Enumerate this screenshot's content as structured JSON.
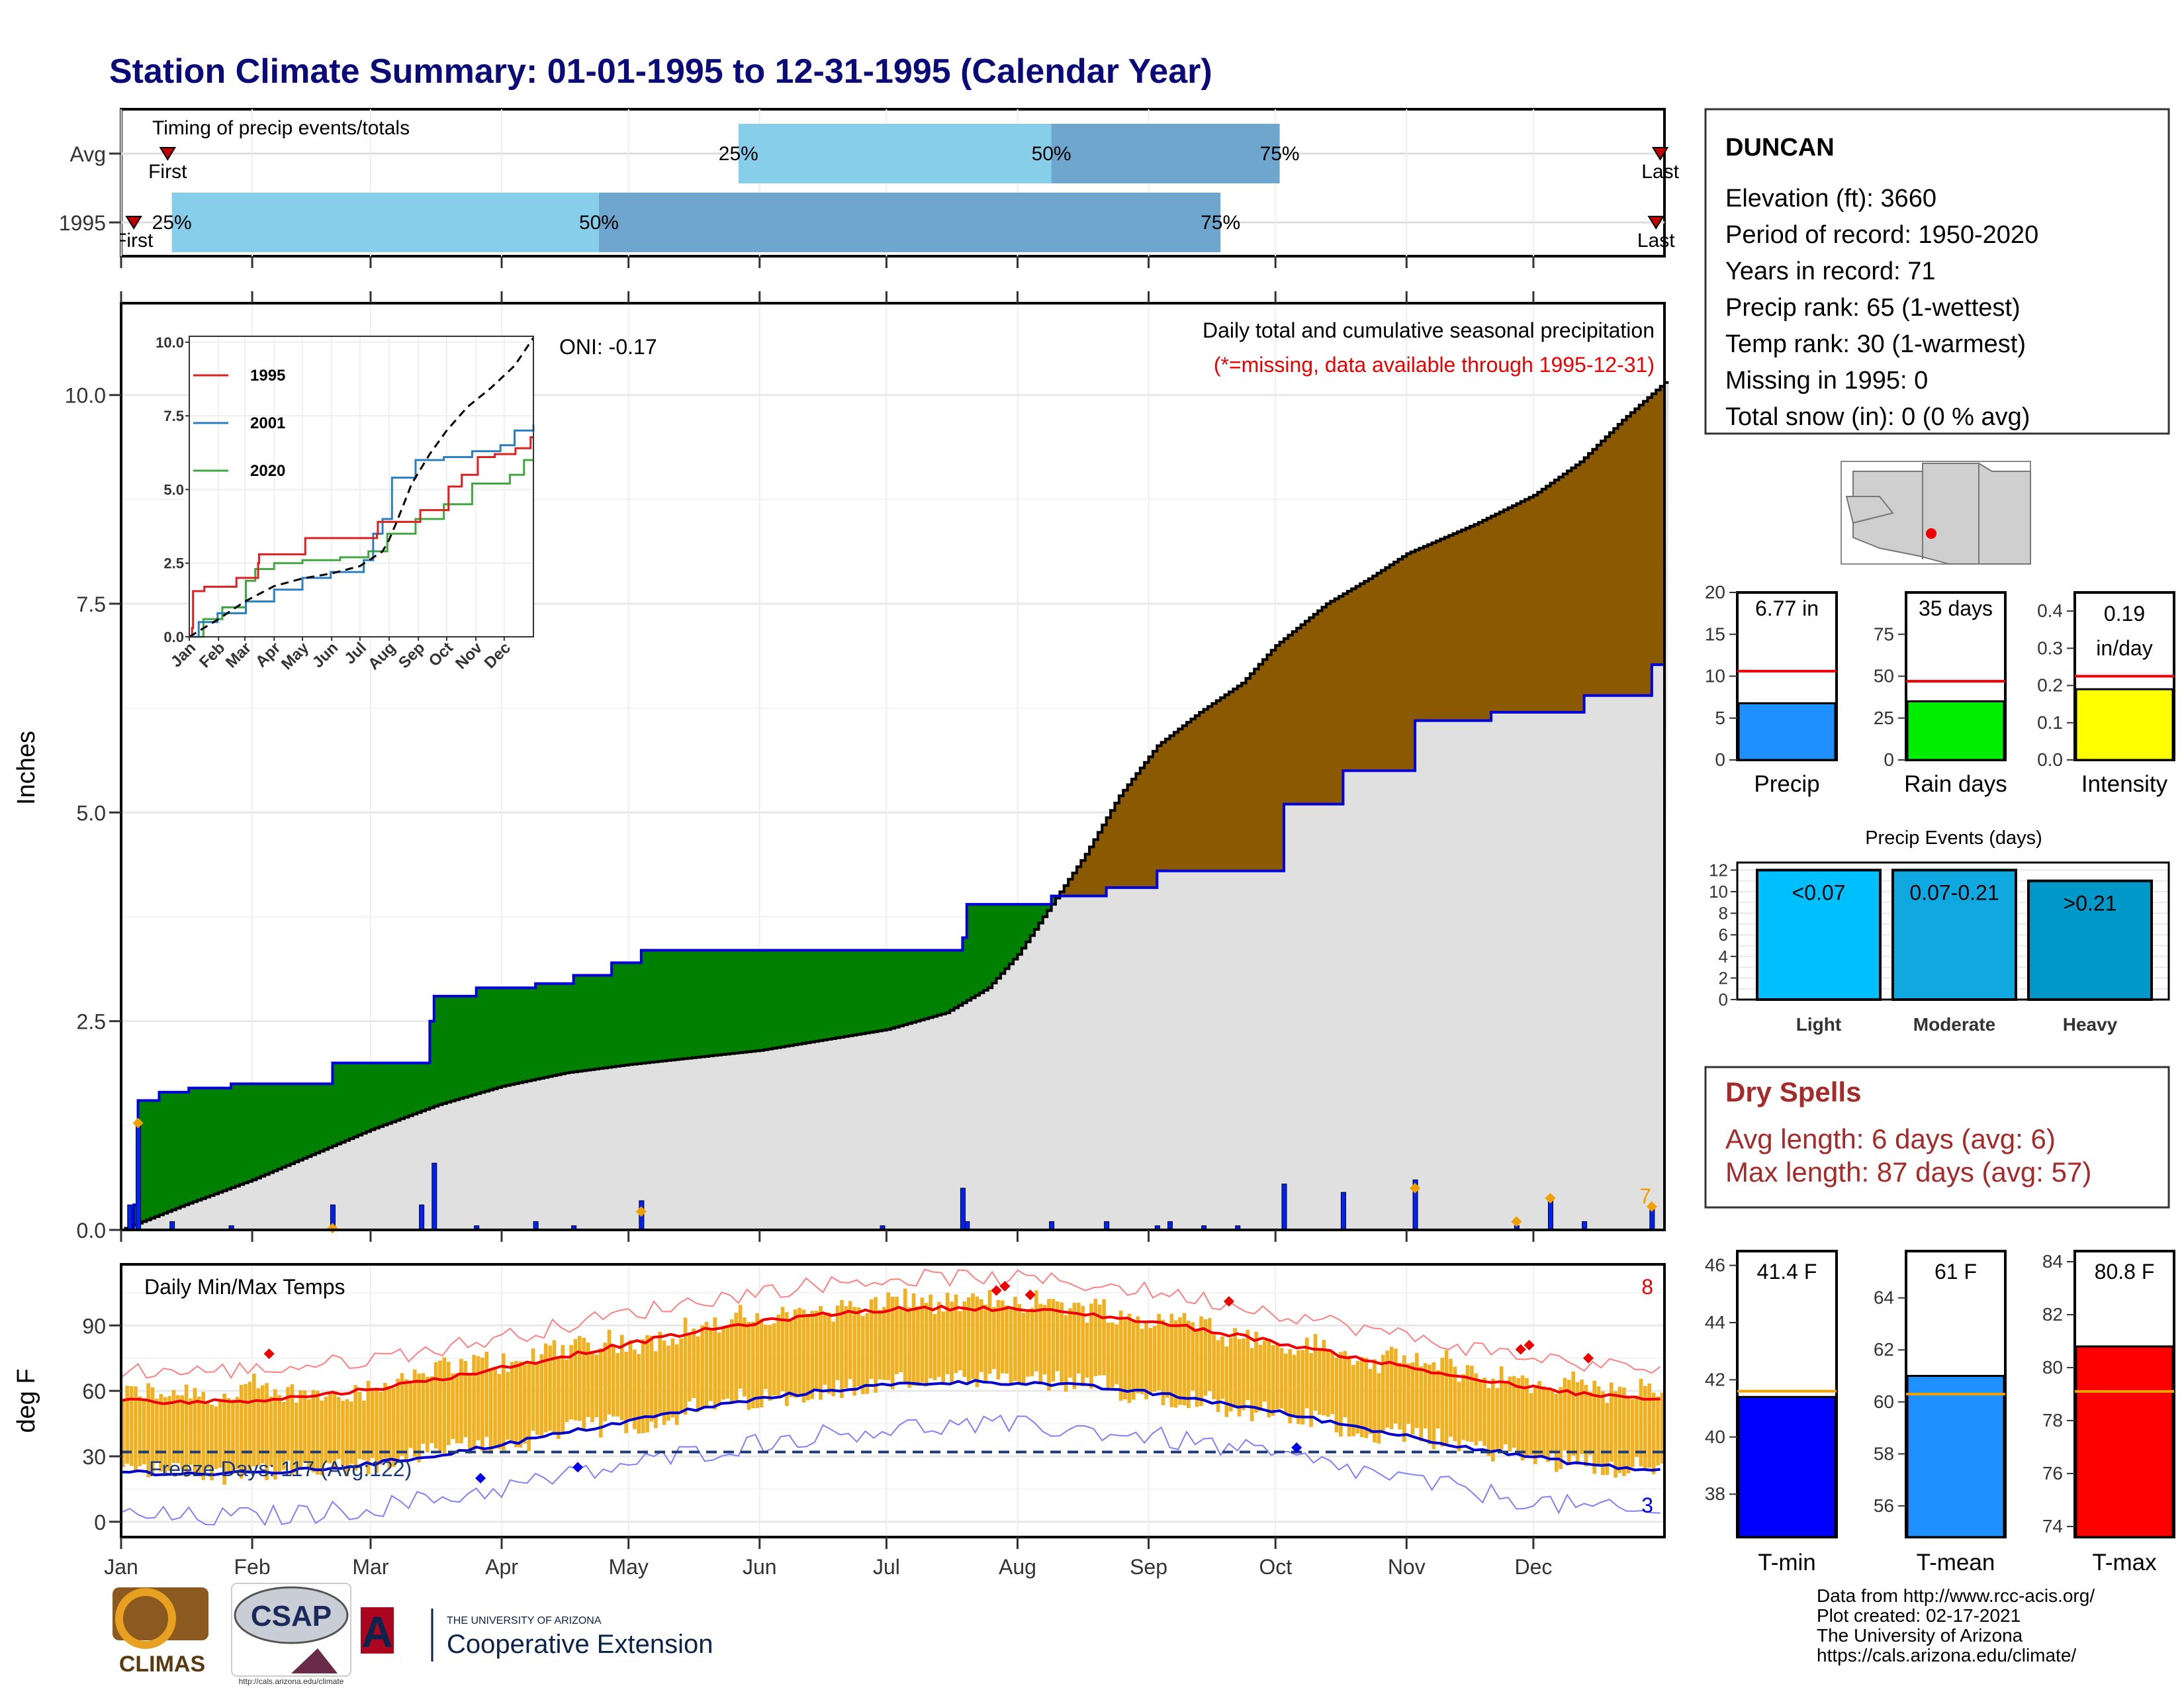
{
  "title": "Station Climate Summary: 01-01-1995 to 12-31-1995 (Calendar Year)",
  "colors": {
    "title": "#0a0a78",
    "green": "#008000",
    "brown": "#8b5a00",
    "grey": "#e0e0e0",
    "obs_line": "#0000dd",
    "light_blue": "#87ceeb",
    "mid_blue": "#6ea6cd",
    "bar_orange": "#f0b020",
    "dry_red": "#a52a2a",
    "missing_red": "#ff0000"
  },
  "timing": {
    "title": "Timing of precip events/totals",
    "rows": [
      {
        "label": "Avg",
        "first_label": "First",
        "last_label": "Last",
        "first_doy": 11,
        "last_doy": 364,
        "p25_doy": 146,
        "p50_doy": 220,
        "p75_doy": 274,
        "p25_label": "25%",
        "p50_label": "50%",
        "p75_label": "75%"
      },
      {
        "label": "1995",
        "first_label": "First",
        "last_label": "Last",
        "first_doy": 3,
        "last_doy": 363,
        "p25_doy": 12,
        "p50_doy": 113,
        "p75_doy": 260,
        "p25_label": "25%",
        "p50_label": "50%",
        "p75_label": "75%"
      }
    ]
  },
  "precip_panel": {
    "ylabel": "Inches",
    "yticks": [
      "0.0",
      "2.5",
      "5.0",
      "7.5",
      "10.0"
    ],
    "oni": "ONI: -0.17",
    "subtitle": "Daily total and cumulative seasonal precipitation",
    "missing_note": "(*=missing, data available through 1995-12-31)",
    "extreme_count": "7"
  },
  "inset": {
    "yticks": [
      "0.0",
      "2.5",
      "5.0",
      "7.5",
      "10.0"
    ],
    "months": [
      "Jan",
      "Feb",
      "Mar",
      "Apr",
      "May",
      "Jun",
      "Jul",
      "Aug",
      "Sep",
      "Oct",
      "Nov",
      "Dec"
    ],
    "legend": [
      {
        "name": "1995",
        "color": "#dd2020"
      },
      {
        "name": "2001",
        "color": "#2a7fc0"
      },
      {
        "name": "2020",
        "color": "#40a840"
      }
    ]
  },
  "temp_panel": {
    "title": "Daily Min/Max Temps",
    "ylabel": "deg F",
    "yticks": [
      "0",
      "30",
      "60",
      "90"
    ],
    "freeze": "Freeze Days: 117 (Avg:122)",
    "max_extremes": "8",
    "min_extremes": "3"
  },
  "months": [
    "Jan",
    "Feb",
    "Mar",
    "Apr",
    "May",
    "Jun",
    "Jul",
    "Aug",
    "Sep",
    "Oct",
    "Nov",
    "Dec"
  ],
  "station": {
    "name": "DUNCAN",
    "lines": [
      "Elevation (ft): 3660",
      "Period of record: 1950-2020",
      "Years in record: 71",
      "Precip rank: 65 (1-wettest)",
      "Temp rank: 30 (1-warmest)",
      "Missing in 1995: 0",
      "Total snow (in): 0 (0 % avg)"
    ]
  },
  "summary_bars": [
    {
      "label": "Precip",
      "value_text": "6.77 in",
      "value": 6.77,
      "avg": 10.6,
      "ymax": 20,
      "yticks": [
        "0",
        "5",
        "10",
        "15",
        "20"
      ],
      "color": "#1e90ff"
    },
    {
      "label": "Rain days",
      "value_text": "35 days",
      "value": 35,
      "avg": 47,
      "ymax": 100,
      "yticks": [
        "0",
        "25",
        "50",
        "75"
      ],
      "color": "#00ee00"
    },
    {
      "label": "Intensity",
      "value_text": "0.19 in/day",
      "value_line1": "0.19",
      "value_line2": "in/day",
      "value": 0.19,
      "avg": 0.225,
      "ymax": 0.45,
      "yticks": [
        "0.0",
        "0.1",
        "0.2",
        "0.3",
        "0.4"
      ],
      "color": "#ffff00"
    }
  ],
  "events": {
    "title": "Precip Events (days)",
    "yticks": [
      "0",
      "2",
      "4",
      "6",
      "8",
      "10",
      "12"
    ],
    "bars": [
      {
        "category": "Light",
        "label": "<0.07",
        "value": 12,
        "color": "#00bfff"
      },
      {
        "category": "Moderate",
        "label": "0.07-0.21",
        "value": 12,
        "color": "#10a8e0"
      },
      {
        "category": "Heavy",
        "label": ">0.21",
        "value": 11,
        "color": "#0098c8"
      }
    ]
  },
  "dry_spells": {
    "title": "Dry Spells",
    "avg": "Avg length: 6 days (avg: 6)",
    "max": "Max length: 87 days (avg: 57)"
  },
  "temp_bars": [
    {
      "label": "T-min",
      "value_text": "41.4 F",
      "value": 41.4,
      "avg": 41.6,
      "ymin": 36.5,
      "ymax": 46.5,
      "yticks": [
        "38",
        "40",
        "42",
        "44",
        "46"
      ],
      "tickvals": [
        38,
        40,
        42,
        44,
        46
      ],
      "color": "#0000ff"
    },
    {
      "label": "T-mean",
      "value_text": "61 F",
      "value": 61,
      "avg": 60.3,
      "ymin": 54.8,
      "ymax": 65.8,
      "yticks": [
        "56",
        "58",
        "60",
        "62",
        "64"
      ],
      "tickvals": [
        56,
        58,
        60,
        62,
        64
      ],
      "color": "#1e90ff"
    },
    {
      "label": "T-max",
      "value_text": "80.8 F",
      "value": 80.8,
      "avg": 79.1,
      "ymin": 73.6,
      "ymax": 84.4,
      "yticks": [
        "74",
        "76",
        "78",
        "80",
        "82",
        "84"
      ],
      "tickvals": [
        74,
        76,
        78,
        80,
        82,
        84
      ],
      "color": "#ff0000"
    }
  ],
  "credits": [
    "Data from http://www.rcc-acis.org/",
    "Plot created: 02-17-2021",
    "The University of Arizona",
    "https://cals.arizona.edu/climate/"
  ],
  "logos": {
    "climas": "CLIMAS",
    "csap": "CSAP",
    "csap_url": "http://cals.arizona.edu/climate",
    "ua_line1": "THE UNIVERSITY OF ARIZONA",
    "ua_line2": "Cooperative Extension",
    "ua_letter": "A"
  }
}
